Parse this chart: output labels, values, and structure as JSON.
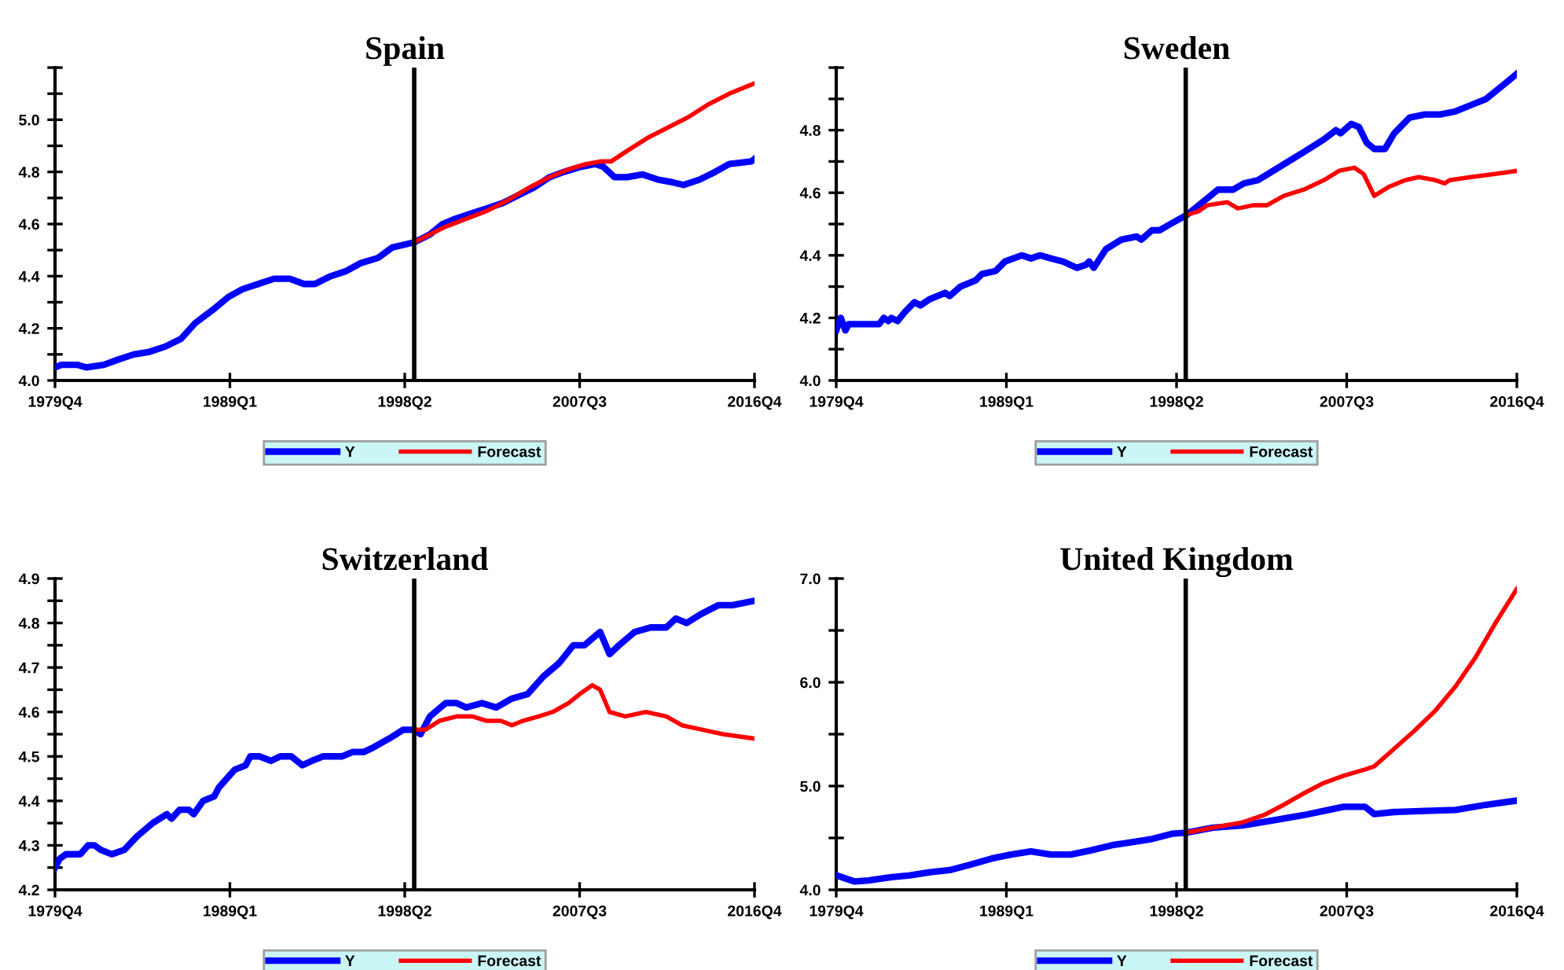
{
  "chart_data": [
    {
      "type": "line",
      "title": "Spain",
      "legend": "bottom",
      "grid": false,
      "xlim": [
        "1979-10",
        "2016-10"
      ],
      "xticks": [
        {
          "value": "1979-10",
          "label": "1979Q4"
        },
        {
          "value": "1989-01",
          "label": "1989Q1"
        },
        {
          "value": "1998-04",
          "label": "1998Q2"
        },
        {
          "value": "2007-07",
          "label": "2007Q3"
        },
        {
          "value": "2016-10",
          "label": "2016Q4"
        }
      ],
      "ylim": [
        4.0,
        5.2
      ],
      "yticks": [
        {
          "value": 4.0,
          "label": "4.0"
        },
        {
          "value": 4.1,
          "label": null
        },
        {
          "value": 4.2,
          "label": "4.2"
        },
        {
          "value": 4.3,
          "label": null
        },
        {
          "value": 4.4,
          "label": "4.4"
        },
        {
          "value": 4.5,
          "label": null
        },
        {
          "value": 4.6,
          "label": "4.6"
        },
        {
          "value": 4.7,
          "label": null
        },
        {
          "value": 4.8,
          "label": "4.8"
        },
        {
          "value": 4.9,
          "label": null
        },
        {
          "value": 5.0,
          "label": "5.0"
        },
        {
          "value": 5.1,
          "label": null
        },
        {
          "value": 5.2,
          "label": null
        }
      ],
      "ref_lines": [
        {
          "axis": "x",
          "value": "1998-10",
          "color": "#000000"
        }
      ],
      "series": [
        {
          "name": "Y",
          "color": "#0000ff",
          "x": [
            "1979-10",
            "1980-02",
            "1980-12",
            "1981-06",
            "1982-05",
            "1983-02",
            "1983-12",
            "1984-10",
            "1985-08",
            "1986-06",
            "1987-03",
            "1988-02",
            "1988-12",
            "1989-09",
            "1990-07",
            "1991-05",
            "1992-03",
            "1992-12",
            "1993-07",
            "1994-05",
            "1995-03",
            "1995-12",
            "1996-11",
            "1997-08",
            "1998-10",
            "1999-08",
            "2000-04",
            "2000-12",
            "2001-10",
            "2002-08",
            "2003-06",
            "2004-04",
            "2005-02",
            "2005-12",
            "2006-09",
            "2007-08",
            "2008-05",
            "2008-10",
            "2009-05",
            "2010-01",
            "2010-11",
            "2011-09",
            "2012-06",
            "2013-01",
            "2013-11",
            "2014-09",
            "2015-06",
            "2016-08",
            "2016-10"
          ],
          "values": [
            4.05,
            4.06,
            4.06,
            4.05,
            4.06,
            4.08,
            4.1,
            4.11,
            4.13,
            4.16,
            4.22,
            4.27,
            4.32,
            4.35,
            4.37,
            4.39,
            4.39,
            4.37,
            4.37,
            4.4,
            4.42,
            4.45,
            4.47,
            4.51,
            4.53,
            4.56,
            4.6,
            4.62,
            4.64,
            4.66,
            4.68,
            4.71,
            4.74,
            4.78,
            4.8,
            4.82,
            4.83,
            4.82,
            4.78,
            4.78,
            4.79,
            4.77,
            4.76,
            4.75,
            4.77,
            4.8,
            4.83,
            4.84,
            4.85
          ]
        },
        {
          "name": "Forecast",
          "color": "#ff0000",
          "x": [
            "1998-10",
            "1999-08",
            "2000-06",
            "2001-07",
            "2002-08",
            "2003-09",
            "2004-11",
            "2005-12",
            "2006-12",
            "2007-11",
            "2008-08",
            "2009-03",
            "2010-01",
            "2011-02",
            "2012-03",
            "2013-04",
            "2014-05",
            "2015-06",
            "2016-10"
          ],
          "values": [
            4.53,
            4.56,
            4.59,
            4.62,
            4.65,
            4.69,
            4.74,
            4.78,
            4.81,
            4.83,
            4.84,
            4.84,
            4.88,
            4.93,
            4.97,
            5.01,
            5.06,
            5.1,
            5.14
          ]
        }
      ]
    },
    {
      "type": "line",
      "title": "Sweden",
      "legend": "bottom",
      "grid": false,
      "xlim": [
        "1979-10",
        "2016-10"
      ],
      "xticks": [
        {
          "value": "1979-10",
          "label": "1979Q4"
        },
        {
          "value": "1989-01",
          "label": "1989Q1"
        },
        {
          "value": "1998-04",
          "label": "1998Q2"
        },
        {
          "value": "2007-07",
          "label": "2007Q3"
        },
        {
          "value": "2016-10",
          "label": "2016Q4"
        }
      ],
      "ylim": [
        4.0,
        5.0
      ],
      "yticks": [
        {
          "value": 4.0,
          "label": "4.0"
        },
        {
          "value": 4.1,
          "label": null
        },
        {
          "value": 4.2,
          "label": "4.2"
        },
        {
          "value": 4.3,
          "label": null
        },
        {
          "value": 4.4,
          "label": "4.4"
        },
        {
          "value": 4.5,
          "label": null
        },
        {
          "value": 4.6,
          "label": "4.6"
        },
        {
          "value": 4.7,
          "label": null
        },
        {
          "value": 4.8,
          "label": "4.8"
        },
        {
          "value": 4.9,
          "label": null
        },
        {
          "value": 5.0,
          "label": null
        }
      ],
      "ref_lines": [
        {
          "axis": "x",
          "value": "1998-10",
          "color": "#000000"
        }
      ],
      "series": [
        {
          "name": "Y",
          "color": "#0000ff",
          "x": [
            "1979-10",
            "1980-01",
            "1980-04",
            "1980-06",
            "1981-05",
            "1982-02",
            "1982-05",
            "1982-08",
            "1982-10",
            "1983-02",
            "1983-07",
            "1984-01",
            "1984-05",
            "1984-11",
            "1985-09",
            "1985-12",
            "1986-07",
            "1987-05",
            "1987-09",
            "1988-06",
            "1988-12",
            "1989-11",
            "1990-05",
            "1990-11",
            "1991-06",
            "1992-02",
            "1992-11",
            "1993-05",
            "1993-07",
            "1993-10",
            "1994-06",
            "1995-04",
            "1996-02",
            "1996-05",
            "1996-12",
            "1997-05",
            "1997-12",
            "1998-11",
            "1999-09",
            "2000-07",
            "2001-05",
            "2001-12",
            "2002-09",
            "2003-07",
            "2004-05",
            "2005-03",
            "2006-04",
            "2006-12",
            "2007-03",
            "2007-10",
            "2008-03",
            "2008-08",
            "2009-01",
            "2009-08",
            "2010-02",
            "2010-12",
            "2011-10",
            "2012-08",
            "2013-06",
            "2014-04",
            "2015-02",
            "2015-12",
            "2016-05",
            "2016-10"
          ],
          "values": [
            4.16,
            4.2,
            4.16,
            4.18,
            4.18,
            4.18,
            4.2,
            4.19,
            4.2,
            4.19,
            4.22,
            4.25,
            4.24,
            4.26,
            4.28,
            4.27,
            4.3,
            4.32,
            4.34,
            4.35,
            4.38,
            4.4,
            4.39,
            4.4,
            4.39,
            4.38,
            4.36,
            4.37,
            4.38,
            4.36,
            4.42,
            4.45,
            4.46,
            4.45,
            4.48,
            4.48,
            4.5,
            4.53,
            4.57,
            4.61,
            4.61,
            4.63,
            4.64,
            4.67,
            4.7,
            4.73,
            4.77,
            4.8,
            4.79,
            4.82,
            4.81,
            4.76,
            4.74,
            4.74,
            4.79,
            4.84,
            4.85,
            4.85,
            4.86,
            4.88,
            4.9,
            4.94,
            4.96,
            4.98
          ]
        },
        {
          "name": "Forecast",
          "color": "#ff0000",
          "x": [
            "1998-11",
            "1999-06",
            "1999-12",
            "2001-01",
            "2001-08",
            "2002-06",
            "2003-03",
            "2004-02",
            "2005-03",
            "2006-04",
            "2007-02",
            "2007-12",
            "2008-06",
            "2009-01",
            "2009-11",
            "2010-09",
            "2011-06",
            "2012-05",
            "2012-11",
            "2013-02",
            "2014-04",
            "2015-08",
            "2016-10"
          ],
          "values": [
            4.53,
            4.54,
            4.56,
            4.57,
            4.55,
            4.56,
            4.56,
            4.59,
            4.61,
            4.64,
            4.67,
            4.68,
            4.66,
            4.59,
            4.62,
            4.64,
            4.65,
            4.64,
            4.63,
            4.64,
            4.65,
            4.66,
            4.67
          ]
        }
      ]
    },
    {
      "type": "line",
      "title": "Switzerland",
      "legend": "bottom",
      "grid": false,
      "xlim": [
        "1979-10",
        "2016-10"
      ],
      "xticks": [
        {
          "value": "1979-10",
          "label": "1979Q4"
        },
        {
          "value": "1989-01",
          "label": "1989Q1"
        },
        {
          "value": "1998-04",
          "label": "1998Q2"
        },
        {
          "value": "2007-07",
          "label": "2007Q3"
        },
        {
          "value": "2016-10",
          "label": "2016Q4"
        }
      ],
      "ylim": [
        4.2,
        4.9
      ],
      "yticks": [
        {
          "value": 4.2,
          "label": "4.2"
        },
        {
          "value": 4.25,
          "label": null
        },
        {
          "value": 4.3,
          "label": "4.3"
        },
        {
          "value": 4.35,
          "label": null
        },
        {
          "value": 4.4,
          "label": "4.4"
        },
        {
          "value": 4.45,
          "label": null
        },
        {
          "value": 4.5,
          "label": "4.5"
        },
        {
          "value": 4.55,
          "label": null
        },
        {
          "value": 4.6,
          "label": "4.6"
        },
        {
          "value": 4.65,
          "label": null
        },
        {
          "value": 4.7,
          "label": "4.7"
        },
        {
          "value": 4.75,
          "label": null
        },
        {
          "value": 4.8,
          "label": "4.8"
        },
        {
          "value": 4.85,
          "label": null
        },
        {
          "value": 4.9,
          "label": "4.9"
        }
      ],
      "ref_lines": [
        {
          "axis": "x",
          "value": "1998-10",
          "color": "#000000"
        }
      ],
      "series": [
        {
          "name": "Y",
          "color": "#0000ff",
          "x": [
            "1979-10",
            "1980-01",
            "1980-05",
            "1981-02",
            "1981-07",
            "1981-11",
            "1982-03",
            "1982-10",
            "1983-06",
            "1984-02",
            "1984-12",
            "1985-09",
            "1985-12",
            "1986-05",
            "1986-11",
            "1987-02",
            "1987-08",
            "1988-03",
            "1988-06",
            "1989-04",
            "1989-11",
            "1990-02",
            "1990-08",
            "1991-03",
            "1991-09",
            "1992-04",
            "1992-11",
            "1993-05",
            "1993-12",
            "1994-06",
            "1994-12",
            "1995-07",
            "1996-02",
            "1996-08",
            "1997-06",
            "1998-03",
            "1998-10",
            "1999-02",
            "1999-08",
            "2000-06",
            "2001-01",
            "2001-07",
            "2002-05",
            "2003-02",
            "2003-12",
            "2004-10",
            "2005-08",
            "2006-06",
            "2007-03",
            "2007-10",
            "2008-08",
            "2009-02",
            "2009-08",
            "2010-06",
            "2011-04",
            "2012-02",
            "2012-08",
            "2013-03",
            "2013-12",
            "2014-11",
            "2015-08",
            "2016-10"
          ],
          "values": [
            4.25,
            4.27,
            4.28,
            4.28,
            4.3,
            4.3,
            4.29,
            4.28,
            4.29,
            4.32,
            4.35,
            4.37,
            4.36,
            4.38,
            4.38,
            4.37,
            4.4,
            4.41,
            4.43,
            4.47,
            4.48,
            4.5,
            4.5,
            4.49,
            4.5,
            4.5,
            4.48,
            4.49,
            4.5,
            4.5,
            4.5,
            4.51,
            4.51,
            4.52,
            4.54,
            4.56,
            4.56,
            4.55,
            4.59,
            4.62,
            4.62,
            4.61,
            4.62,
            4.61,
            4.63,
            4.64,
            4.68,
            4.71,
            4.75,
            4.75,
            4.78,
            4.73,
            4.75,
            4.78,
            4.79,
            4.79,
            4.81,
            4.8,
            4.82,
            4.84,
            4.84,
            4.85
          ]
        },
        {
          "name": "Forecast",
          "color": "#ff0000",
          "x": [
            "1998-10",
            "1999-05",
            "2000-02",
            "2001-01",
            "2001-11",
            "2002-08",
            "2003-05",
            "2003-12",
            "2004-07",
            "2005-05",
            "2006-02",
            "2006-12",
            "2007-07",
            "2008-03",
            "2008-08",
            "2009-02",
            "2009-12",
            "2011-01",
            "2012-02",
            "2012-12",
            "2014-01",
            "2015-02",
            "2016-10"
          ],
          "values": [
            4.56,
            4.56,
            4.58,
            4.59,
            4.59,
            4.58,
            4.58,
            4.57,
            4.58,
            4.59,
            4.6,
            4.62,
            4.64,
            4.66,
            4.65,
            4.6,
            4.59,
            4.6,
            4.59,
            4.57,
            4.56,
            4.55,
            4.54
          ]
        }
      ]
    },
    {
      "type": "line",
      "title": "United Kingdom",
      "legend": "bottom",
      "grid": false,
      "xlim": [
        "1979-10",
        "2016-10"
      ],
      "xticks": [
        {
          "value": "1979-10",
          "label": "1979Q4"
        },
        {
          "value": "1989-01",
          "label": "1989Q1"
        },
        {
          "value": "1998-04",
          "label": "1998Q2"
        },
        {
          "value": "2007-07",
          "label": "2007Q3"
        },
        {
          "value": "2016-10",
          "label": "2016Q4"
        }
      ],
      "ylim": [
        4.0,
        7.0
      ],
      "yticks": [
        {
          "value": 4.0,
          "label": "4.0"
        },
        {
          "value": 4.5,
          "label": null
        },
        {
          "value": 5.0,
          "label": "5.0"
        },
        {
          "value": 5.5,
          "label": null
        },
        {
          "value": 6.0,
          "label": "6.0"
        },
        {
          "value": 6.5,
          "label": null
        },
        {
          "value": 7.0,
          "label": "7.0"
        }
      ],
      "ref_lines": [
        {
          "axis": "x",
          "value": "1998-10",
          "color": "#000000"
        }
      ],
      "series": [
        {
          "name": "Y",
          "color": "#0000ff",
          "x": [
            "1979-10",
            "1980-10",
            "1981-07",
            "1982-09",
            "1983-10",
            "1984-11",
            "1985-12",
            "1987-01",
            "1988-03",
            "1989-04",
            "1990-05",
            "1991-06",
            "1992-07",
            "1993-08",
            "1994-10",
            "1995-11",
            "1996-12",
            "1998-01",
            "1998-10",
            "2000-04",
            "2001-11",
            "2003-07",
            "2005-03",
            "2006-04",
            "2007-05",
            "2008-07",
            "2009-01",
            "2010-02",
            "2011-10",
            "2013-06",
            "2015-02",
            "2016-10"
          ],
          "values": [
            4.14,
            4.08,
            4.09,
            4.12,
            4.14,
            4.17,
            4.19,
            4.24,
            4.3,
            4.34,
            4.37,
            4.34,
            4.34,
            4.38,
            4.43,
            4.46,
            4.49,
            4.54,
            4.55,
            4.6,
            4.62,
            4.67,
            4.72,
            4.76,
            4.8,
            4.8,
            4.73,
            4.75,
            4.76,
            4.77,
            4.82,
            4.86
          ]
        },
        {
          "name": "Forecast",
          "color": "#ff0000",
          "x": [
            "1998-10",
            "2000-04",
            "2001-11",
            "2003-01",
            "2004-02",
            "2005-03",
            "2006-04",
            "2007-05",
            "2008-07",
            "2009-01",
            "2010-02",
            "2011-03",
            "2012-05",
            "2013-06",
            "2014-07",
            "2015-08",
            "2016-10"
          ],
          "values": [
            4.55,
            4.6,
            4.65,
            4.72,
            4.82,
            4.93,
            5.03,
            5.1,
            5.16,
            5.19,
            5.36,
            5.53,
            5.73,
            5.96,
            6.24,
            6.57,
            6.9
          ]
        }
      ]
    }
  ]
}
